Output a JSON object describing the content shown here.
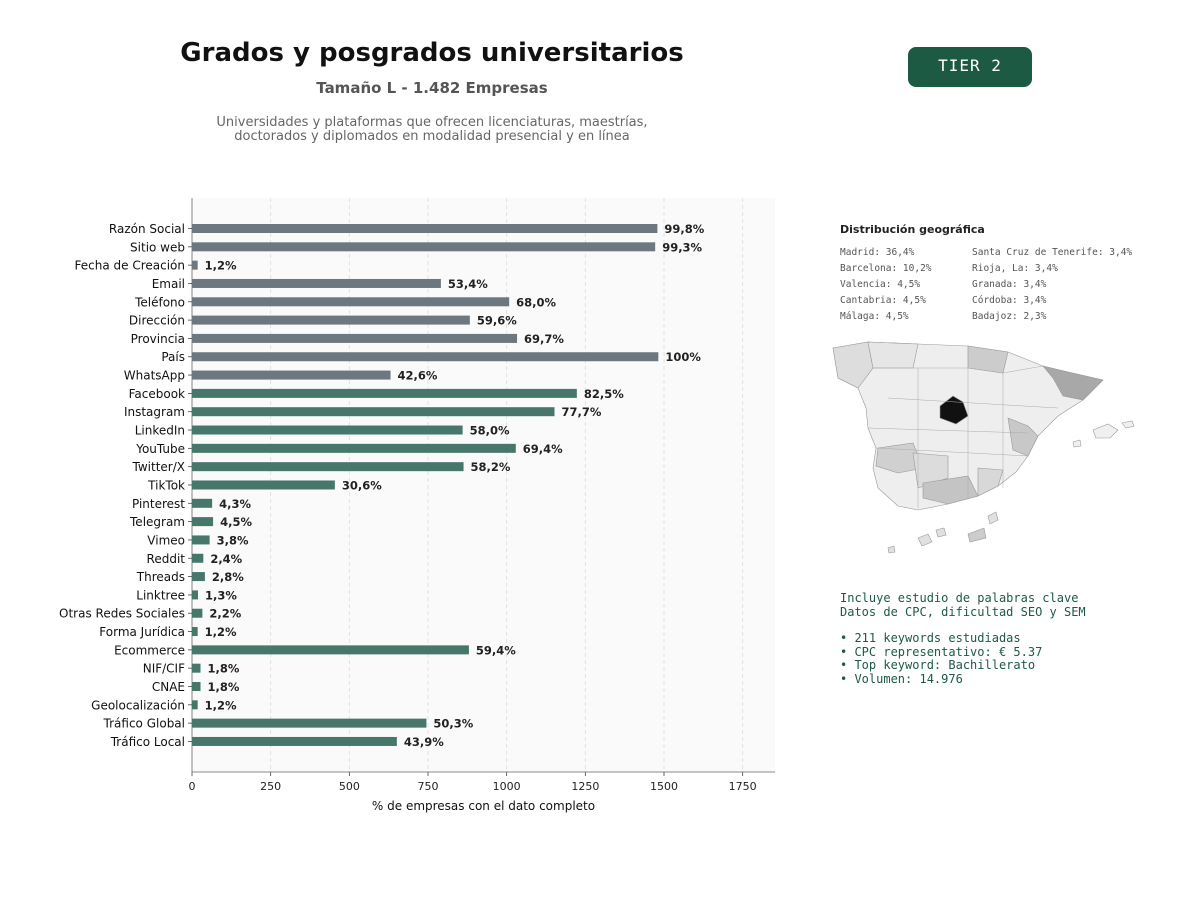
{
  "header": {
    "title": "Grados y posgrados universitarios",
    "subtitle": "Tamaño L - 1.482 Empresas",
    "description": "Universidades y plataformas que ofrecen licenciaturas, maestrías,\ndoctorados y diplomados en modalidad presencial y en línea",
    "tier": "TIER 2"
  },
  "colors": {
    "gray_bar": "#6c7780",
    "green_bar": "#46776a",
    "accent": "#1d5a43"
  },
  "chart_data": {
    "type": "bar",
    "orientation": "horizontal",
    "xlabel": "% de empresas con el dato completo",
    "xlim": [
      0,
      1850
    ],
    "xticks": [
      0,
      250,
      500,
      750,
      1000,
      1250,
      1500,
      1750
    ],
    "grid": "vertical dashed",
    "categories": [
      "Razón Social",
      "Sitio web",
      "Fecha de Creación",
      "Email",
      "Teléfono",
      "Dirección",
      "Provincia",
      "País",
      "WhatsApp",
      "Facebook",
      "Instagram",
      "LinkedIn",
      "YouTube",
      "Twitter/X",
      "TikTok",
      "Pinterest",
      "Telegram",
      "Vimeo",
      "Reddit",
      "Threads",
      "Linktree",
      "Otras Redes Sociales",
      "Forma Jurídica",
      "Ecommerce",
      "NIF/CIF",
      "CNAE",
      "Geolocalización",
      "Tráfico Global",
      "Tráfico Local"
    ],
    "values": [
      1479,
      1472,
      18,
      791,
      1008,
      883,
      1033,
      1482,
      631,
      1223,
      1152,
      860,
      1029,
      863,
      454,
      64,
      67,
      56,
      36,
      41,
      19,
      33,
      18,
      880,
      27,
      27,
      18,
      745,
      651
    ],
    "labels": [
      "99,8%",
      "99,3%",
      "1,2%",
      "53,4%",
      "68,0%",
      "59,6%",
      "69,7%",
      "100%",
      "42,6%",
      "82,5%",
      "77,7%",
      "58,0%",
      "69,4%",
      "58,2%",
      "30,6%",
      "4,3%",
      "4,5%",
      "3,8%",
      "2,4%",
      "2,8%",
      "1,3%",
      "2,2%",
      "1,2%",
      "59,4%",
      "1,8%",
      "1,8%",
      "1,2%",
      "50,3%",
      "43,9%"
    ],
    "bar_colors": [
      "gray",
      "gray",
      "gray",
      "gray",
      "gray",
      "gray",
      "gray",
      "gray",
      "gray",
      "green",
      "green",
      "green",
      "green",
      "green",
      "green",
      "green",
      "green",
      "green",
      "green",
      "green",
      "green",
      "green",
      "green",
      "green",
      "green",
      "green",
      "green",
      "green",
      "green"
    ]
  },
  "geo": {
    "title": "Distribución geográfica",
    "left": [
      "Madrid: 36,4%",
      "Barcelona: 10,2%",
      "Valencia: 4,5%",
      "Cantabria: 4,5%",
      "Málaga: 4,5%"
    ],
    "right": [
      "Santa Cruz de Tenerife: 3,4%",
      "Rioja, La: 3,4%",
      "Granada: 3,4%",
      "Córdoba: 3,4%",
      "Badajoz: 2,3%"
    ]
  },
  "keywords": {
    "line1": "Incluye estudio de palabras clave",
    "line2": "Datos de CPC, dificultad SEO y SEM",
    "bullets": [
      "• 211 keywords estudiadas",
      "• CPC representativo: € 5.37",
      "• Top keyword: Bachillerato",
      "• Volumen: 14.976"
    ]
  }
}
